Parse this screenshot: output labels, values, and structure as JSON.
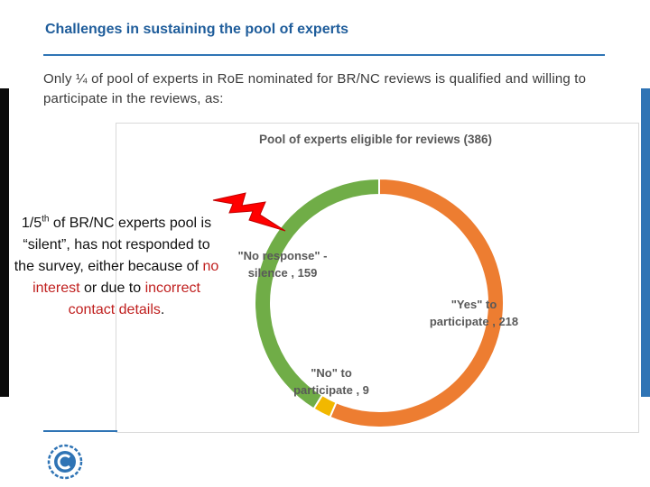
{
  "slide": {
    "title": "Challenges in sustaining the pool of experts",
    "intro": "Only ¼ of pool of experts in RoE nominated for BR/NC reviews is qualified and willing to participate in the reviews, as:"
  },
  "callout": {
    "part1": "1/5",
    "sup": "th",
    "part2": " of BR/NC experts pool is “silent”, has not responded to the survey, either because of ",
    "red1": "no interest",
    "part3": " or due to ",
    "red2": "incorrect contact details",
    "part4": "."
  },
  "icons": {
    "lightning": "lightning-bolt-icon",
    "logo": "unfccc-logo-icon"
  },
  "colors": {
    "accent": "#2f74b5",
    "highlight_red": "#c0201f"
  },
  "chart_data": {
    "type": "pie",
    "donut": true,
    "title": "Pool of experts eligible for reviews (386)",
    "series": [
      {
        "label": "\"Yes\" to participate",
        "value": 218,
        "color": "#ed7d31"
      },
      {
        "label": "\"No\" to participate",
        "value": 9,
        "color": "#f2b800"
      },
      {
        "label": "\"No response\" - silence",
        "value": 159,
        "color": "#70ad47"
      }
    ],
    "data_labels": [
      {
        "line1": "\"Yes\" to",
        "line2": "participate , 218"
      },
      {
        "line1": "\"No\" to",
        "line2": "participate , 9"
      },
      {
        "line1": "\"No response\" -",
        "line2": "silence , 159"
      }
    ]
  }
}
